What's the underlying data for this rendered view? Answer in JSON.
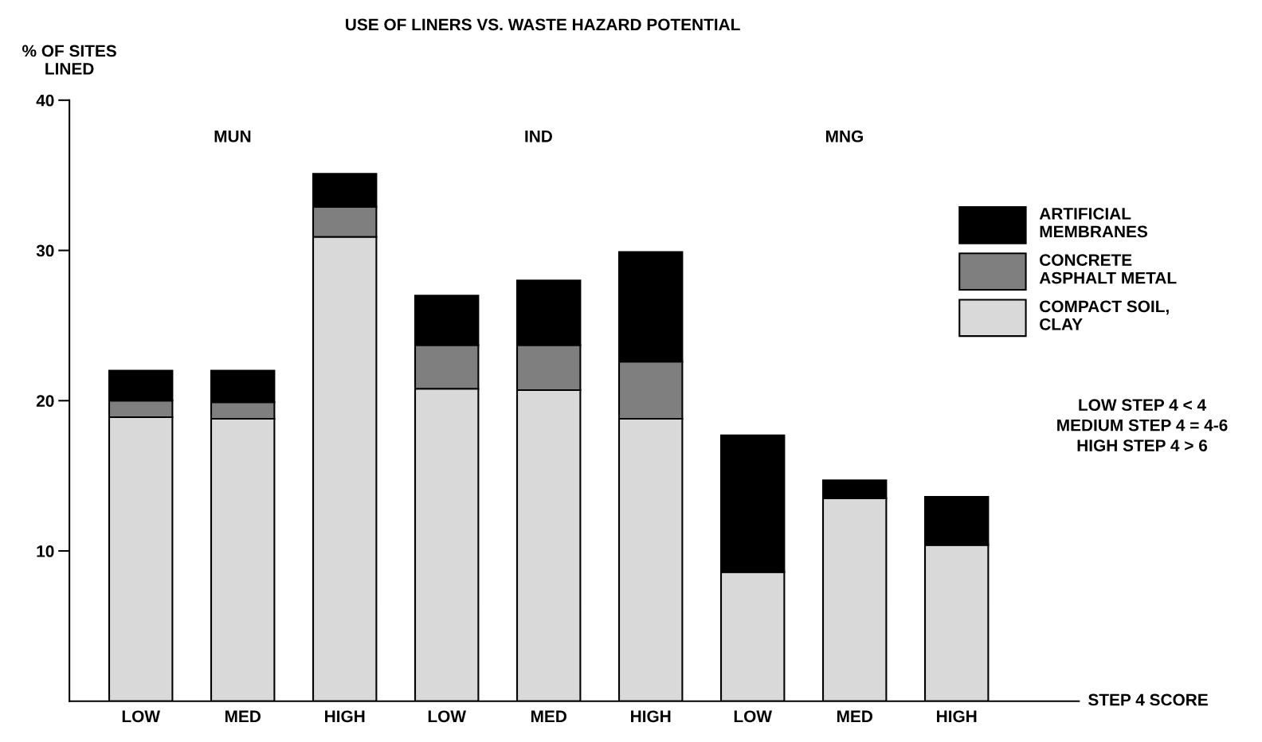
{
  "chart_data": {
    "type": "bar",
    "stacked": true,
    "title": "USE OF LINERS VS. WASTE HAZARD POTENTIAL",
    "ylabel": "% OF SITES\nLINED",
    "xlabel": "STEP 4 SCORE",
    "categories": [
      "LOW",
      "MED",
      "HIGH",
      "LOW",
      "MED",
      "HIGH",
      "LOW",
      "MED",
      "HIGH"
    ],
    "series": [
      {
        "name": "COMPACT SOIL,\nCLAY",
        "color": "#d9d9d9",
        "values": [
          18.9,
          18.8,
          30.9,
          20.8,
          20.7,
          18.8,
          8.6,
          13.5,
          10.4
        ]
      },
      {
        "name": "CONCRETE\nASPHALT METAL",
        "color": "#7f7f7f",
        "values": [
          1.1,
          1.1,
          2.0,
          2.9,
          3.0,
          3.8,
          0,
          0,
          0
        ]
      },
      {
        "name": "ARTIFICIAL\nMEMBRANES",
        "color": "#000000",
        "values": [
          2.0,
          2.1,
          2.2,
          3.3,
          4.3,
          7.3,
          9.1,
          1.2,
          3.2
        ]
      }
    ],
    "ylim": [
      0,
      40
    ],
    "yticks": [
      10,
      20,
      30,
      40
    ],
    "grid": false,
    "legend": "top right",
    "annotations": [
      "MUN",
      "IND",
      "MNG",
      "LOW STEP 4 < 4\nMEDIUM STEP 4 = 4-6\nHIGH STEP 4 > 6"
    ]
  }
}
